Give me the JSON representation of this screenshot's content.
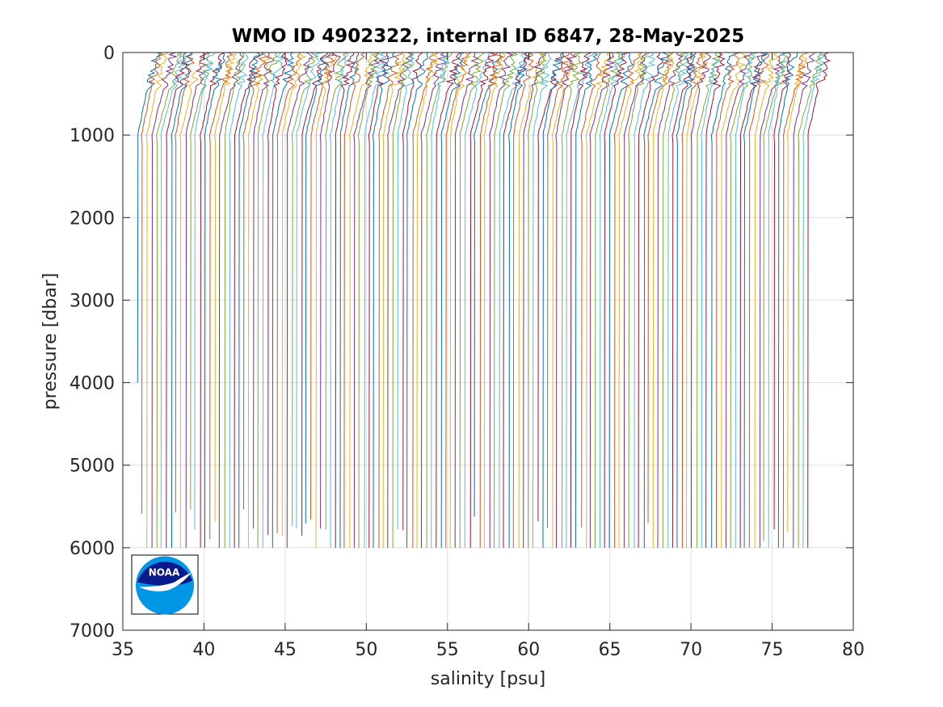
{
  "chart_data": {
    "type": "line",
    "title": "WMO ID 4902322, internal ID 6847, 28-May-2025",
    "xlabel": "salinity [psu]",
    "ylabel": "pressure [dbar]",
    "xlim": [
      35,
      80
    ],
    "ylim": [
      0,
      7000
    ],
    "y_reversed": true,
    "grid": true,
    "xticks": [
      35,
      40,
      45,
      50,
      55,
      60,
      65,
      70,
      75,
      80
    ],
    "yticks": [
      0,
      1000,
      2000,
      3000,
      4000,
      5000,
      6000,
      7000
    ],
    "series_description": "Many salinity profiles, each offset by about 0.3 psu; surface values ~37.5-78.5 psu, deep values ~36-76.5 psu, most extending to ~6000 dbar",
    "profiles": {
      "count": 140,
      "offset_step_psu": 0.297,
      "first_deep_salinity": 35.9,
      "first_surface_salinity": 37.4,
      "surface_to_1000dbar_shift_psu": 1.25,
      "typical_max_pressure": 6000,
      "first_profile_max_pressure": 4000,
      "colors": [
        "#0072bd",
        "#d95319",
        "#edb120",
        "#7e2f8e",
        "#77ac30",
        "#4dbeee",
        "#a2142f"
      ]
    },
    "logo": {
      "name": "NOAA",
      "colors": {
        "navy": "#0a1a8c",
        "sky": "#0096e6",
        "white": "#ffffff"
      }
    }
  }
}
